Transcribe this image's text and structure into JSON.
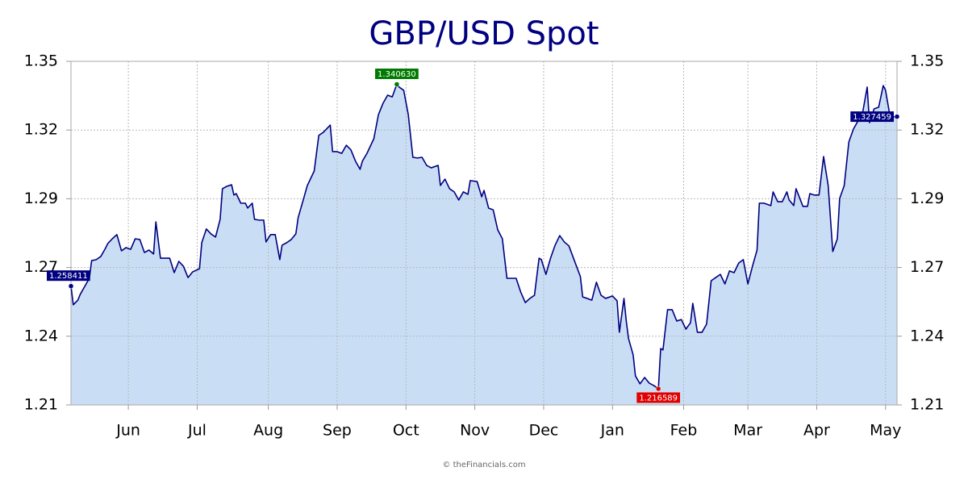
{
  "chart_data": {
    "type": "area",
    "title": "GBP/USD Spot",
    "footer": "© theFinancials.com",
    "grid": true,
    "xlim": [
      0,
      360
    ],
    "xticks": [
      {
        "value": 25,
        "label": "Jun"
      },
      {
        "value": 55,
        "label": "Jul"
      },
      {
        "value": 86,
        "label": "Aug"
      },
      {
        "value": 116,
        "label": "Sep"
      },
      {
        "value": 146,
        "label": "Oct"
      },
      {
        "value": 176,
        "label": "Nov"
      },
      {
        "value": 206,
        "label": "Dec"
      },
      {
        "value": 236,
        "label": "Jan"
      },
      {
        "value": 267,
        "label": "Feb"
      },
      {
        "value": 295,
        "label": "Mar"
      },
      {
        "value": 325,
        "label": "Apr"
      },
      {
        "value": 355,
        "label": "May"
      }
    ],
    "ylim": [
      1.21,
      1.35
    ],
    "yticks": [
      1.21,
      {
        "value": 1.238,
        "label": "1.24"
      },
      {
        "value": 1.266,
        "label": "1.27"
      },
      {
        "value": 1.294,
        "label": "1.29"
      },
      {
        "value": 1.322,
        "label": "1.32"
      },
      1.35
    ],
    "series": [
      {
        "color": "#000080",
        "fill": "#c9def5",
        "x": [
          0,
          1,
          3,
          4,
          6,
          8,
          9,
          11,
          13,
          15,
          16,
          18,
          20,
          22,
          24,
          26,
          28,
          30,
          32,
          34,
          36,
          37,
          39,
          41,
          43,
          45,
          47,
          49,
          51,
          53,
          56,
          57,
          59,
          61,
          63,
          65,
          66,
          68,
          70,
          71,
          72,
          74,
          76,
          77,
          79,
          80,
          82,
          84,
          85,
          87,
          89,
          91,
          92,
          94,
          96,
          98,
          99,
          101,
          103,
          106,
          108,
          110,
          113,
          114,
          116,
          118,
          120,
          122,
          124,
          126,
          127,
          129,
          132,
          134,
          136,
          138,
          140,
          142,
          143,
          145,
          147,
          149,
          151,
          153,
          155,
          157,
          160,
          161,
          163,
          165,
          167,
          169,
          171,
          173,
          174,
          177,
          179,
          180,
          182,
          184,
          186,
          188,
          190,
          193,
          194,
          196,
          198,
          200,
          202,
          204,
          205,
          207,
          209,
          211,
          213,
          215,
          217,
          219,
          222,
          223,
          225,
          227,
          229,
          231,
          233,
          236,
          238,
          239,
          241,
          242,
          243,
          245,
          246,
          248,
          250,
          252,
          254,
          256,
          257,
          258,
          260,
          262,
          264,
          266,
          268,
          270,
          271,
          273,
          275,
          277,
          279,
          281,
          283,
          285,
          287,
          289,
          291,
          293,
          295,
          297,
          299,
          300,
          302,
          305,
          306,
          308,
          310,
          312,
          313,
          315,
          316,
          319,
          321,
          322,
          324,
          326,
          328,
          330,
          332,
          334,
          335,
          337,
          339,
          341,
          343,
          345,
          347,
          348,
          350,
          352,
          354,
          355,
          357,
          360
        ],
        "values": [
          1.258411,
          1.2508,
          1.2527,
          1.255,
          1.2583,
          1.2616,
          1.2688,
          1.2692,
          1.2705,
          1.2738,
          1.2757,
          1.2777,
          1.2794,
          1.2728,
          1.2741,
          1.2734,
          1.2777,
          1.2774,
          1.2721,
          1.2731,
          1.2715,
          1.2846,
          1.2698,
          1.2698,
          1.2698,
          1.2639,
          1.2685,
          1.2665,
          1.2619,
          1.2642,
          1.2655,
          1.2761,
          1.2817,
          1.2797,
          1.2784,
          1.2856,
          1.2981,
          1.2991,
          1.2997,
          1.2955,
          1.2961,
          1.2922,
          1.2922,
          1.2902,
          1.2922,
          1.2856,
          1.2853,
          1.2853,
          1.2764,
          1.2794,
          1.2794,
          1.2692,
          1.2751,
          1.2761,
          1.2774,
          1.2797,
          1.2863,
          1.2928,
          1.2994,
          1.3053,
          1.3198,
          1.3211,
          1.324,
          1.3132,
          1.3132,
          1.3125,
          1.3158,
          1.3139,
          1.3093,
          1.306,
          1.3093,
          1.3125,
          1.3185,
          1.3283,
          1.3329,
          1.3362,
          1.3355,
          1.34063,
          1.3395,
          1.3382,
          1.3283,
          1.3109,
          1.3106,
          1.3109,
          1.3076,
          1.3066,
          1.3076,
          1.2994,
          1.302,
          1.2981,
          1.2968,
          1.2935,
          1.2968,
          1.2958,
          1.3014,
          1.301,
          1.2948,
          1.2974,
          1.2902,
          1.2895,
          1.2813,
          1.2777,
          1.2616,
          1.2616,
          1.2616,
          1.256,
          1.2517,
          1.2534,
          1.2547,
          1.2698,
          1.2692,
          1.2632,
          1.2698,
          1.2751,
          1.279,
          1.2764,
          1.2748,
          1.2698,
          1.2623,
          1.254,
          1.2534,
          1.2527,
          1.26,
          1.2547,
          1.2534,
          1.2544,
          1.2524,
          1.2396,
          1.2534,
          1.2442,
          1.237,
          1.2304,
          1.2218,
          1.2186,
          1.2212,
          1.2189,
          1.2179,
          1.216589,
          1.233,
          1.2324,
          1.2488,
          1.2488,
          1.2442,
          1.2448,
          1.2409,
          1.2435,
          1.2514,
          1.2396,
          1.2396,
          1.2429,
          1.2606,
          1.2619,
          1.2632,
          1.2593,
          1.2646,
          1.2639,
          1.2678,
          1.2692,
          1.2593,
          1.2665,
          1.2731,
          1.2922,
          1.2922,
          1.2912,
          1.2968,
          1.2928,
          1.2928,
          1.2968,
          1.2935,
          1.2912,
          1.2981,
          1.2909,
          1.2909,
          1.2961,
          1.2955,
          1.2955,
          1.3112,
          1.2994,
          1.2725,
          1.2777,
          1.2941,
          1.2994,
          1.3171,
          1.3224,
          1.3257,
          1.329,
          1.3395,
          1.325,
          1.3306,
          1.3313,
          1.3401,
          1.3382,
          1.3273,
          1.327459
        ]
      }
    ],
    "markers": [
      {
        "x": 0,
        "value": 1.258411,
        "label": "1.258411",
        "color": "#000080",
        "side": "left"
      },
      {
        "x": 142,
        "value": 1.34063,
        "label": "1.340630",
        "color": "#007a00",
        "side": "top"
      },
      {
        "x": 256,
        "value": 1.216589,
        "label": "1.216589",
        "color": "#e00000",
        "side": "bottom"
      },
      {
        "x": 360,
        "value": 1.327459,
        "label": "1.327459",
        "color": "#000080",
        "side": "left"
      }
    ]
  }
}
